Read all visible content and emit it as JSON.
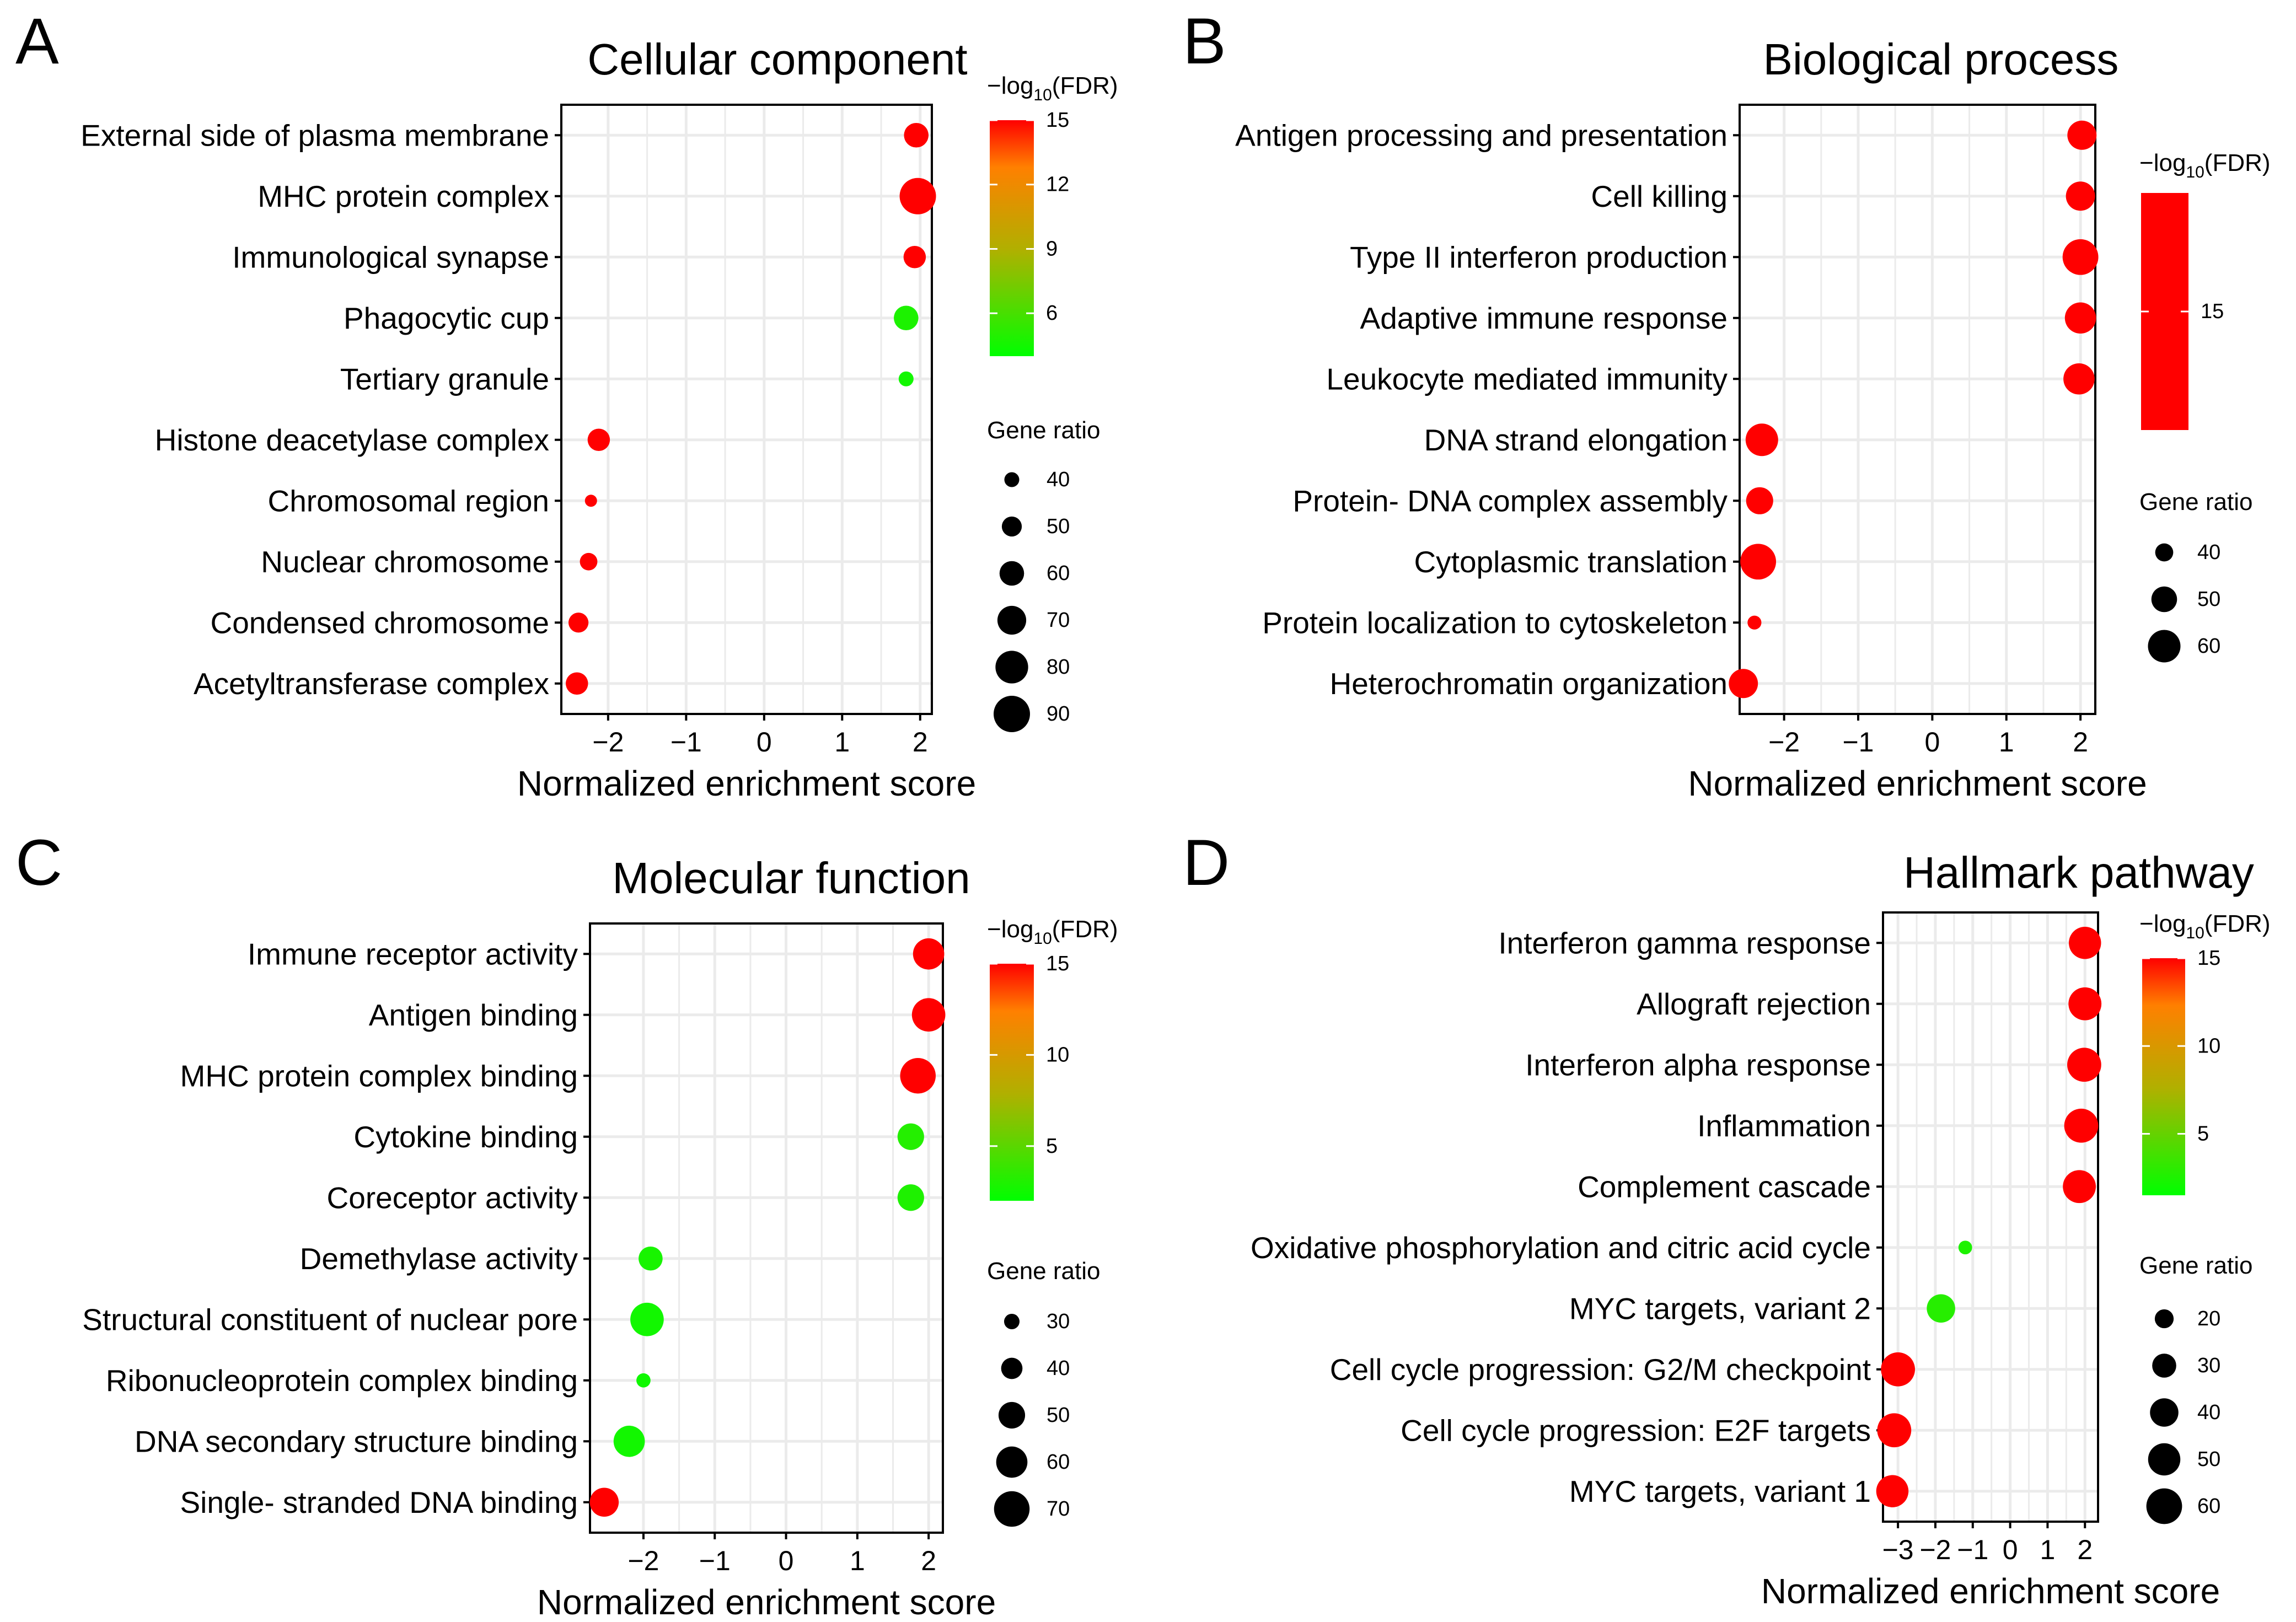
{
  "xlabel": "Normalized enrichment score",
  "colors": {
    "high": "#ff0000",
    "mid": "#ff8000",
    "midlow": "#b0b000",
    "low": "#00ff00",
    "grid": "#ebebeb",
    "axis": "#000000"
  },
  "chart_data": [
    {
      "letter": "A",
      "type": "scatter",
      "title": "Cellular component",
      "xlabel": "Normalized enrichment score",
      "xlim": [
        -2.6,
        2.15
      ],
      "xticks": [
        -2,
        -1,
        0,
        1,
        2
      ],
      "xtick_labels": [
        "−2",
        "−1",
        "0",
        "1",
        "2"
      ],
      "categories": [
        "External side of plasma membrane",
        "MHC protein complex",
        "Immunological synapse",
        "Phagocytic cup",
        "Tertiary granule",
        "Histone deacetylase complex",
        "Chromosomal region",
        "Nuclear chromosome",
        "Condensed chromosome",
        "Acetyltransferase complex"
      ],
      "nes": [
        1.95,
        1.97,
        1.93,
        1.82,
        1.82,
        -2.12,
        -2.22,
        -2.25,
        -2.38,
        -2.4
      ],
      "neg_log10_fdr": [
        15,
        15,
        15,
        4.8,
        4.5,
        15,
        15,
        15,
        15,
        15
      ],
      "gene_ratio": [
        60,
        90,
        55,
        60,
        40,
        55,
        35,
        45,
        50,
        55
      ],
      "legend": {
        "color_title": [
          "−log",
          "10",
          "(FDR)"
        ],
        "color_range": [
          4,
          15
        ],
        "color_ticks": [
          15,
          12,
          9,
          6
        ],
        "size_title": "Gene ratio",
        "size_range": [
          35,
          90
        ],
        "size_ticks": [
          40,
          50,
          60,
          70,
          80,
          90
        ]
      }
    },
    {
      "letter": "B",
      "type": "scatter",
      "title": "Biological process",
      "xlabel": "Normalized enrichment score",
      "xlim": [
        -2.6,
        2.2
      ],
      "xticks": [
        -2,
        -1,
        0,
        1,
        2
      ],
      "xtick_labels": [
        "−2",
        "−1",
        "0",
        "1",
        "2"
      ],
      "categories": [
        "Antigen processing and presentation",
        "Cell killing",
        "Type II interferon production",
        "Adaptive immune response",
        "Leukocyte mediated immunity",
        "DNA strand elongation",
        "Protein- DNA complex assembly",
        "Cytoplasmic translation",
        "Protein localization to cytoskeleton",
        "Heterochromatin organization"
      ],
      "nes": [
        2.02,
        2.0,
        2.0,
        2.0,
        1.98,
        -2.3,
        -2.33,
        -2.35,
        -2.4,
        -2.55
      ],
      "neg_log10_fdr": [
        15,
        15,
        15,
        15,
        15,
        15,
        15,
        15,
        15,
        15
      ],
      "gene_ratio": [
        55,
        55,
        65,
        58,
        58,
        60,
        52,
        65,
        35,
        55
      ],
      "legend": {
        "color_title": [
          "−log",
          "10",
          "(FDR)"
        ],
        "color_range": [
          12,
          18
        ],
        "color_ticks": [
          15
        ],
        "solid_color": true,
        "size_title": "Gene ratio",
        "size_range": [
          33,
          66
        ],
        "size_ticks": [
          40,
          50,
          60
        ]
      }
    },
    {
      "letter": "C",
      "type": "scatter",
      "title": "Molecular function",
      "xlabel": "Normalized enrichment score",
      "xlim": [
        -2.75,
        2.2
      ],
      "xticks": [
        -2,
        -1,
        0,
        1,
        2
      ],
      "xtick_labels": [
        "−2",
        "−1",
        "0",
        "1",
        "2"
      ],
      "categories": [
        "Immune receptor activity",
        "Antigen binding",
        "MHC protein complex binding",
        "Cytokine binding",
        "Coreceptor activity",
        "Demethylase activity",
        "Structural constituent of nuclear pore",
        "Ribonucleoprotein complex binding",
        "DNA secondary structure binding",
        "Single- stranded DNA binding"
      ],
      "nes": [
        2.0,
        2.0,
        1.85,
        1.75,
        1.75,
        -1.9,
        -1.95,
        -2.0,
        -2.2,
        -2.55
      ],
      "neg_log10_fdr": [
        15,
        15,
        15,
        3.2,
        3.0,
        2.8,
        2.6,
        2.5,
        2.6,
        15
      ],
      "gene_ratio": [
        60,
        65,
        70,
        50,
        50,
        45,
        65,
        28,
        60,
        55
      ],
      "legend": {
        "color_title": [
          "−log",
          "10",
          "(FDR)"
        ],
        "color_range": [
          2,
          15
        ],
        "color_ticks": [
          15,
          10,
          5
        ],
        "size_title": "Gene ratio",
        "size_range": [
          25,
          72
        ],
        "size_ticks": [
          30,
          40,
          50,
          60,
          70
        ]
      }
    },
    {
      "letter": "D",
      "type": "scatter",
      "title": "Hallmark pathway",
      "xlabel": "Normalized enrichment score",
      "xlim": [
        -3.4,
        2.35
      ],
      "xticks": [
        -3,
        -2,
        -1,
        0,
        1,
        2
      ],
      "xtick_labels": [
        "−3",
        "−2",
        "−1",
        "0",
        "1",
        "2"
      ],
      "categories": [
        "Interferon gamma response",
        "Allograft rejection",
        "Interferon alpha response",
        "Inflammation",
        "Complement cascade",
        "Oxidative phosphorylation and citric acid cycle",
        "MYC targets, variant 2",
        "Cell cycle progression: G2/M checkpoint",
        "Cell cycle progression: E2F targets",
        "MYC targets, variant 1"
      ],
      "nes": [
        2.0,
        2.0,
        1.98,
        1.9,
        1.85,
        -1.2,
        -1.85,
        -3.0,
        -3.1,
        -3.15
      ],
      "neg_log10_fdr": [
        15,
        15,
        15,
        15,
        15,
        2.5,
        2.8,
        15,
        15,
        15
      ],
      "gene_ratio": [
        50,
        52,
        55,
        55,
        52,
        12,
        40,
        55,
        55,
        50
      ],
      "legend": {
        "color_title": [
          "−log",
          "10",
          "(FDR)"
        ],
        "color_range": [
          1.5,
          15
        ],
        "color_ticks": [
          15,
          10,
          5
        ],
        "size_title": "Gene ratio",
        "size_range": [
          10,
          62
        ],
        "size_ticks": [
          20,
          30,
          40,
          50,
          60
        ]
      }
    }
  ]
}
